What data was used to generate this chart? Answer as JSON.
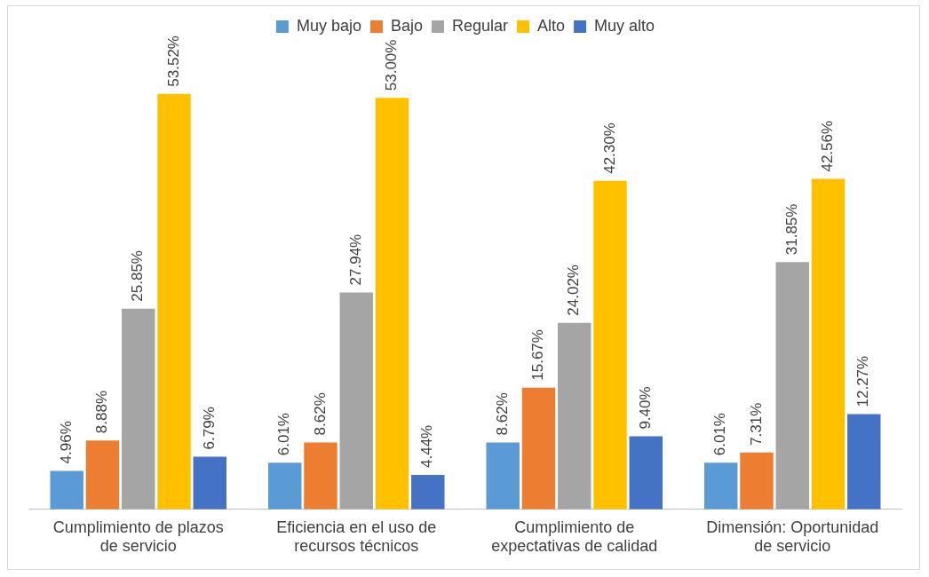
{
  "chart_data": {
    "type": "bar",
    "categories": [
      "Cumplimiento de plazos de servicio",
      "Eficiencia en el uso de recursos técnicos",
      "Cumplimiento de expectativas de calidad",
      "Dimensión: Oportunidad de servicio"
    ],
    "series": [
      {
        "name": "Muy bajo",
        "color": "#5b9bd5",
        "values": [
          4.96,
          6.01,
          8.62,
          6.01
        ],
        "value_labels": [
          "4.96%",
          "6.01%",
          "8.62%",
          "6.01%"
        ]
      },
      {
        "name": "Bajo",
        "color": "#ed7d31",
        "values": [
          8.88,
          8.62,
          15.67,
          7.31
        ],
        "value_labels": [
          "8.88%",
          "8.62%",
          "15.67%",
          "7.31%"
        ]
      },
      {
        "name": "Regular",
        "color": "#a5a5a5",
        "values": [
          25.85,
          27.94,
          24.02,
          31.85
        ],
        "value_labels": [
          "25.85%",
          "27.94%",
          "24.02%",
          "31.85%"
        ]
      },
      {
        "name": "Alto",
        "color": "#ffc000",
        "values": [
          53.52,
          53.0,
          42.3,
          42.56
        ],
        "value_labels": [
          "53.52%",
          "53.00%",
          "42.30%",
          "42.56%"
        ]
      },
      {
        "name": "Muy alto",
        "color": "#4472c4",
        "values": [
          6.79,
          4.44,
          9.4,
          12.27
        ],
        "value_labels": [
          "6.79%",
          "4.44%",
          "9.40%",
          "12.27%"
        ]
      }
    ],
    "legend": "top",
    "grid": false
  }
}
